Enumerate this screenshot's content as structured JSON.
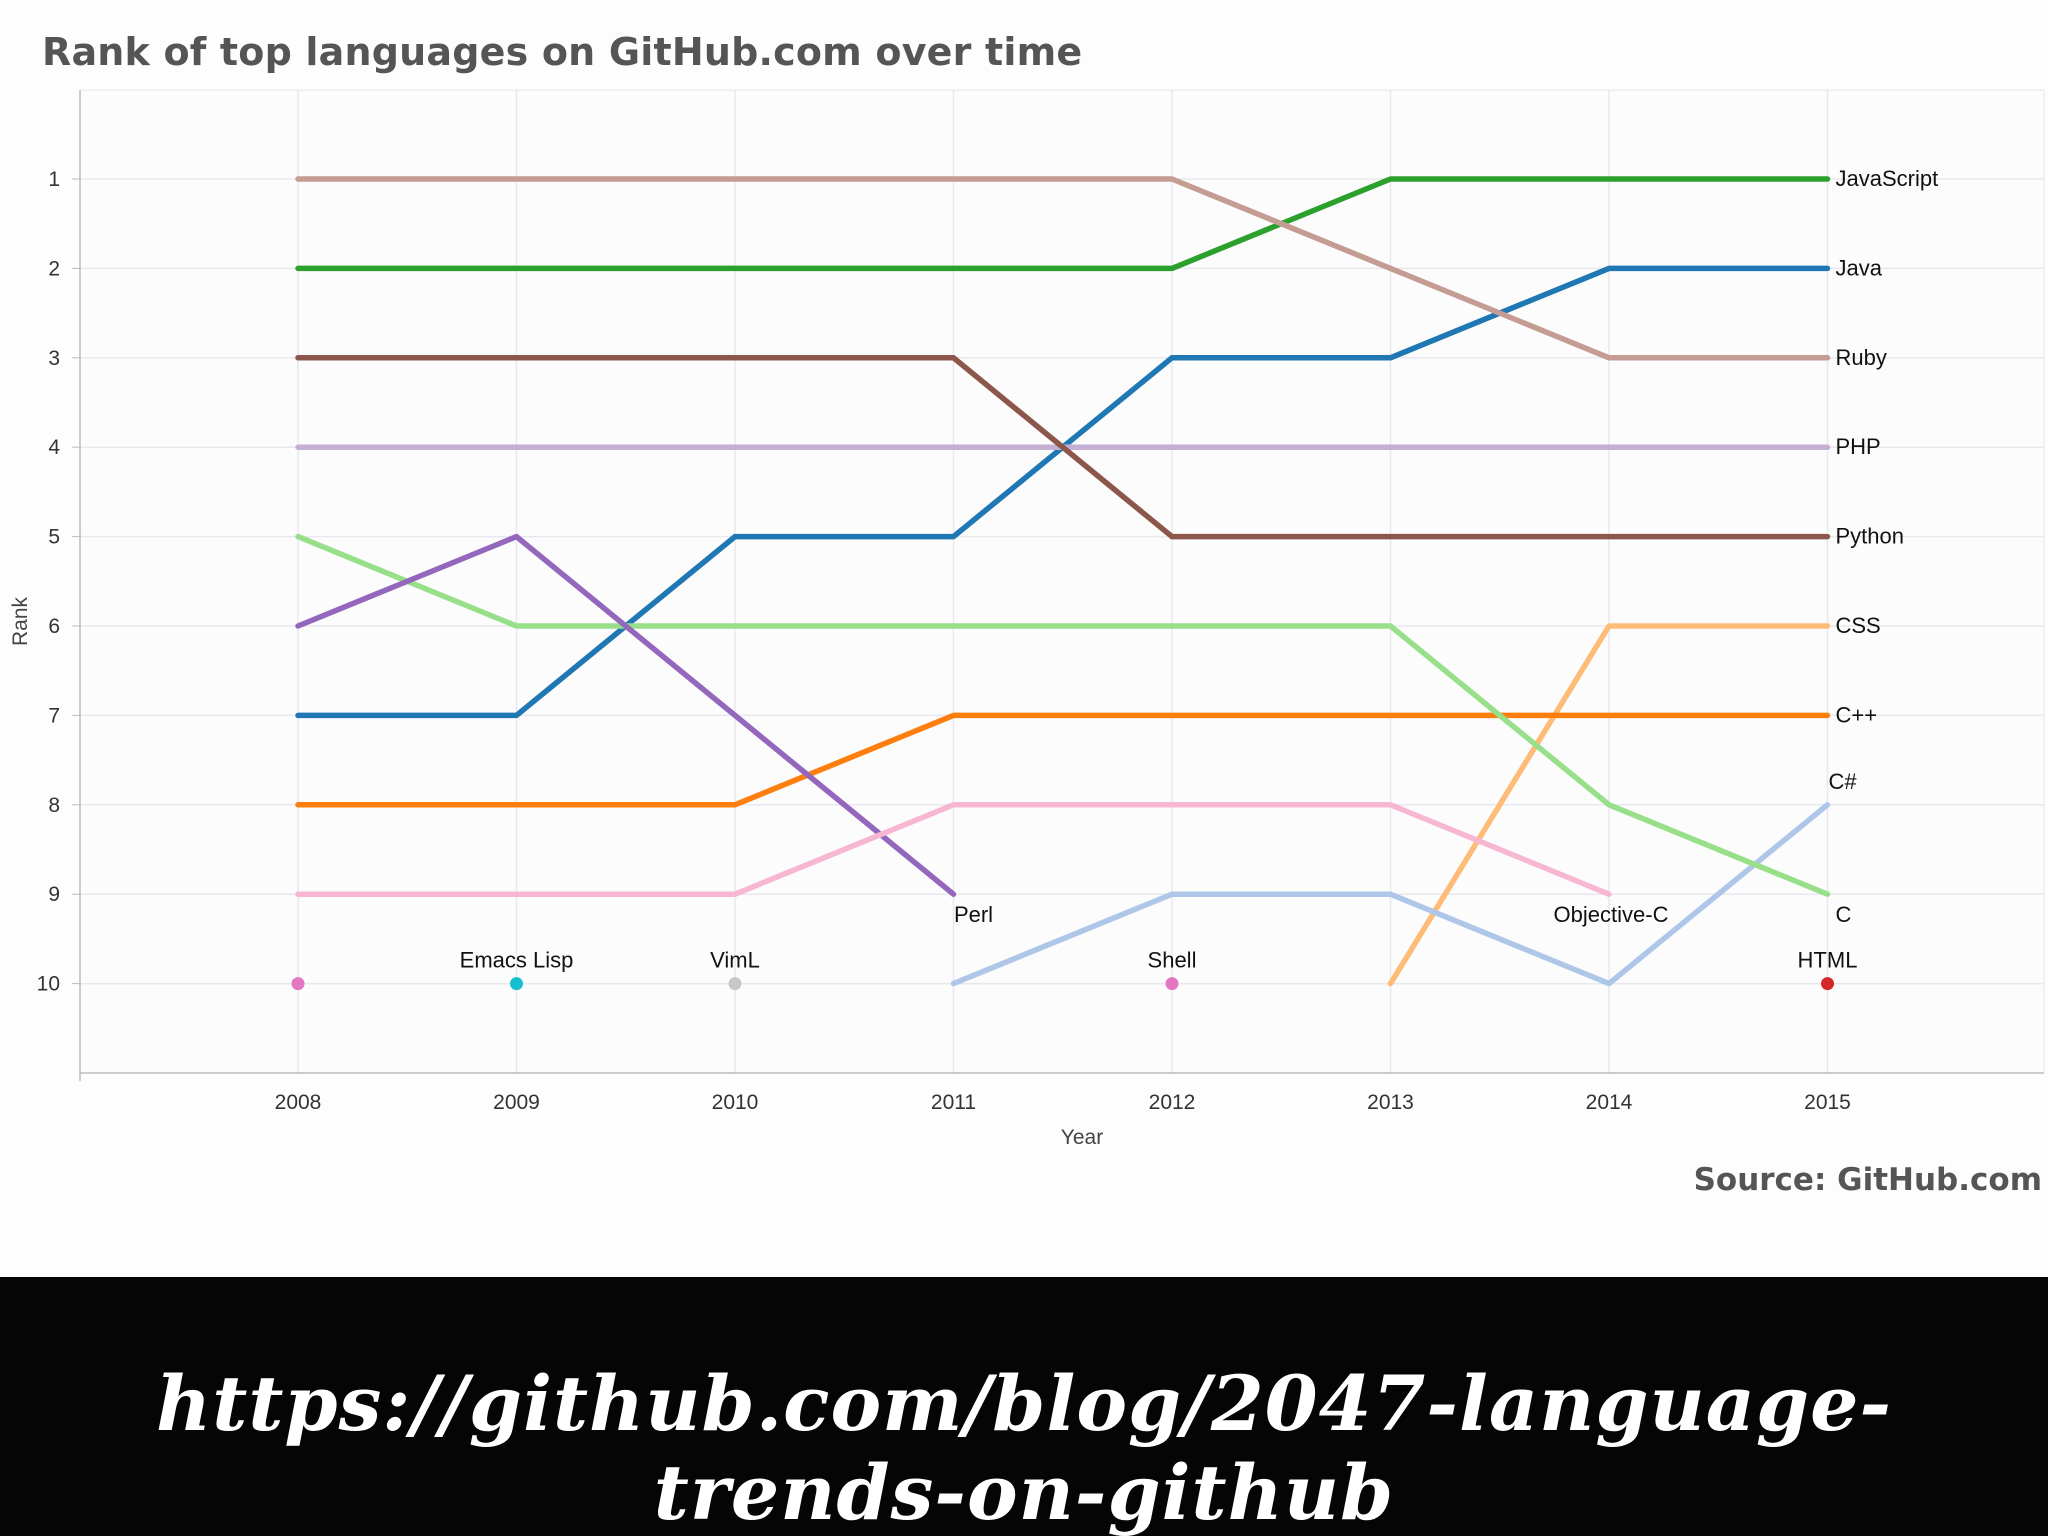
{
  "chart_data": {
    "type": "line",
    "title": "Rank of top languages on GitHub.com over time",
    "xlabel": "Year",
    "ylabel": "Rank",
    "x": [
      2008,
      2009,
      2010,
      2011,
      2012,
      2013,
      2014,
      2015
    ],
    "x_tick_labels": [
      "2008",
      "2009",
      "2010",
      "2011",
      "2012",
      "2013",
      "2014",
      "2015"
    ],
    "y_tick_labels": [
      "1",
      "2",
      "3",
      "4",
      "5",
      "6",
      "7",
      "8",
      "9",
      "10"
    ],
    "xlim": [
      2007,
      2016
    ],
    "ylim": [
      0,
      11
    ],
    "y_inverted": true,
    "grid": true,
    "legend": "inline labels at line ends",
    "series": [
      {
        "name": "JavaScript",
        "color": "#2ca02c",
        "values": [
          2,
          2,
          2,
          2,
          2,
          1,
          1,
          1
        ]
      },
      {
        "name": "Java",
        "color": "#1f77b4",
        "values": [
          7,
          7,
          5,
          5,
          3,
          3,
          2,
          2
        ]
      },
      {
        "name": "Ruby",
        "color": "#c49c94",
        "values": [
          1,
          1,
          1,
          1,
          1,
          2,
          3,
          3
        ]
      },
      {
        "name": "PHP",
        "color": "#c5b0d5",
        "values": [
          4,
          4,
          4,
          4,
          4,
          4,
          4,
          4
        ]
      },
      {
        "name": "Python",
        "color": "#8c564b",
        "values": [
          3,
          3,
          3,
          3,
          5,
          5,
          5,
          5
        ]
      },
      {
        "name": "CSS",
        "color": "#ffbb78",
        "values": [
          null,
          null,
          null,
          null,
          null,
          10,
          6,
          6
        ]
      },
      {
        "name": "C++",
        "color": "#ff7f0e",
        "values": [
          8,
          8,
          8,
          7,
          7,
          7,
          7,
          7
        ]
      },
      {
        "name": "C#",
        "color": "#aec7e8",
        "values": [
          null,
          null,
          null,
          10,
          9,
          9,
          10,
          8
        ]
      },
      {
        "name": "C",
        "color": "#98df8a",
        "values": [
          5,
          6,
          6,
          6,
          6,
          6,
          8,
          9
        ]
      },
      {
        "name": "Perl",
        "color": "#9467bd",
        "values": [
          6,
          5,
          null,
          9,
          null,
          null,
          null,
          null
        ]
      },
      {
        "name": "Objective-C",
        "color": "#f7b6d2",
        "values": [
          9,
          9,
          9,
          8,
          8,
          8,
          9,
          null
        ]
      }
    ],
    "perl_2010_interpolated": true,
    "single_points": [
      {
        "name": "",
        "x": 2008,
        "y": 10,
        "color": "#e377c2"
      },
      {
        "name": "Emacs Lisp",
        "x": 2009,
        "y": 10,
        "color": "#17becf"
      },
      {
        "name": "VimL",
        "x": 2010,
        "y": 10,
        "color": "#c7c7c7"
      },
      {
        "name": "Shell",
        "x": 2012,
        "y": 10,
        "color": "#e377c2"
      },
      {
        "name": "HTML",
        "x": 2015,
        "y": 10,
        "color": "#d62728"
      }
    ],
    "source": "Source: GitHub.com"
  },
  "footer": {
    "url": "https://github.com/blog/2047-language-trends-on-github"
  }
}
